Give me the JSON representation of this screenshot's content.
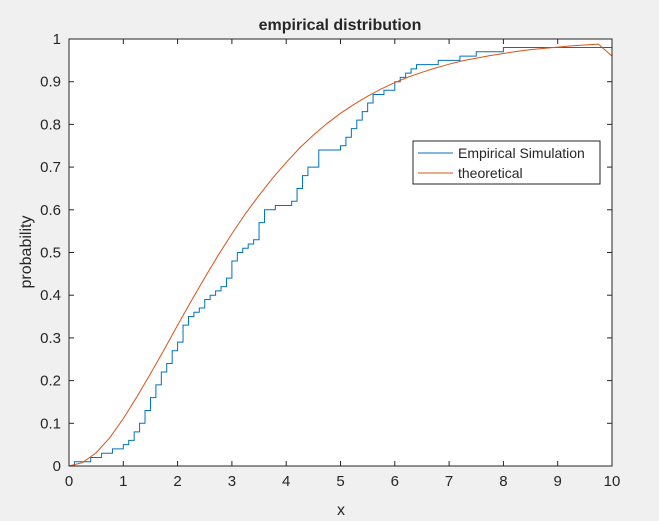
{
  "chart_data": {
    "type": "line",
    "title": "empirical distribution",
    "xlabel": "x",
    "ylabel": "probability",
    "xlim": [
      0,
      10
    ],
    "ylim": [
      0,
      1
    ],
    "xticks": [
      "0",
      "1",
      "2",
      "3",
      "4",
      "5",
      "6",
      "7",
      "8",
      "9",
      "10"
    ],
    "yticks": [
      "0",
      "0.1",
      "0.2",
      "0.3",
      "0.4",
      "0.5",
      "0.6",
      "0.7",
      "0.8",
      "0.9",
      "1"
    ],
    "grid": false,
    "legend_position": "top-right",
    "series": [
      {
        "name": "Empirical Simulation",
        "color": "#0072BD",
        "step": true,
        "x": [
          0.1,
          0.4,
          0.6,
          0.8,
          1.0,
          1.1,
          1.2,
          1.3,
          1.4,
          1.5,
          1.6,
          1.7,
          1.8,
          1.9,
          2.0,
          2.1,
          2.2,
          2.3,
          2.4,
          2.5,
          2.6,
          2.7,
          2.8,
          2.9,
          3.0,
          3.1,
          3.2,
          3.3,
          3.4,
          3.5,
          3.6,
          3.7,
          3.8,
          3.9,
          4.1,
          4.2,
          4.3,
          4.4,
          4.6,
          4.7,
          4.9,
          5.0,
          5.1,
          5.2,
          5.3,
          5.4,
          5.5,
          5.6,
          5.7,
          5.8,
          6.0,
          6.1,
          6.2,
          6.3,
          6.4,
          6.6,
          6.8,
          7.0,
          7.2,
          7.5,
          8.0,
          10.0
        ],
        "y": [
          0.01,
          0.02,
          0.03,
          0.04,
          0.05,
          0.06,
          0.08,
          0.1,
          0.13,
          0.16,
          0.19,
          0.22,
          0.24,
          0.27,
          0.29,
          0.33,
          0.35,
          0.36,
          0.37,
          0.39,
          0.4,
          0.41,
          0.42,
          0.44,
          0.48,
          0.5,
          0.51,
          0.52,
          0.53,
          0.57,
          0.6,
          0.6,
          0.61,
          0.61,
          0.62,
          0.65,
          0.68,
          0.7,
          0.74,
          0.74,
          0.74,
          0.75,
          0.77,
          0.79,
          0.81,
          0.83,
          0.85,
          0.87,
          0.87,
          0.88,
          0.9,
          0.91,
          0.92,
          0.93,
          0.94,
          0.94,
          0.95,
          0.95,
          0.96,
          0.97,
          0.98,
          0.98
        ]
      },
      {
        "name": "theoretical",
        "color": "#D95319",
        "step": false,
        "x": [
          0.0,
          0.25,
          0.5,
          0.75,
          1.0,
          1.25,
          1.5,
          1.75,
          2.0,
          2.25,
          2.5,
          2.75,
          3.0,
          3.25,
          3.5,
          3.75,
          4.0,
          4.25,
          4.5,
          4.75,
          5.0,
          5.25,
          5.5,
          5.75,
          6.0,
          6.25,
          6.5,
          6.75,
          7.0,
          7.25,
          7.5,
          7.75,
          8.0,
          8.25,
          8.5,
          8.75,
          9.0,
          9.25,
          9.5,
          9.75,
          10.0
        ],
        "y": [
          0.0,
          0.008,
          0.031,
          0.066,
          0.111,
          0.162,
          0.216,
          0.272,
          0.33,
          0.386,
          0.441,
          0.494,
          0.544,
          0.591,
          0.634,
          0.674,
          0.711,
          0.745,
          0.775,
          0.802,
          0.826,
          0.847,
          0.866,
          0.883,
          0.898,
          0.911,
          0.922,
          0.932,
          0.941,
          0.949,
          0.955,
          0.961,
          0.966,
          0.971,
          0.975,
          0.978,
          0.981,
          0.984,
          0.986,
          0.988,
          0.96
        ]
      }
    ]
  }
}
